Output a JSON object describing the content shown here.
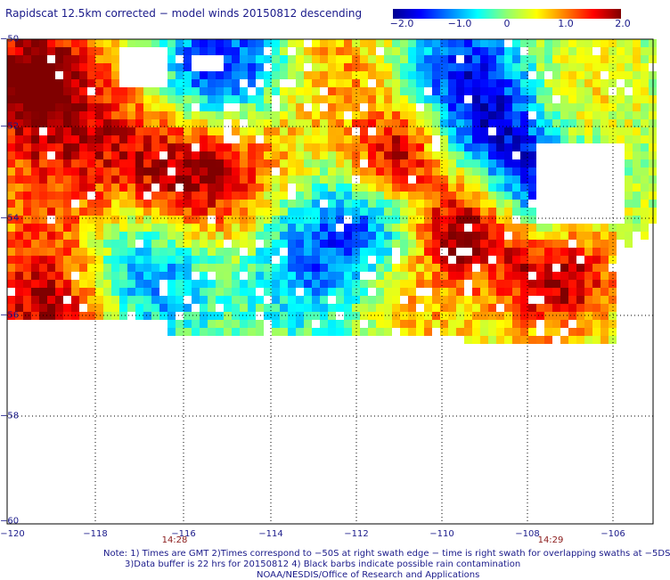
{
  "title": "Rapidscat 12.5km corrected − model winds 20150812 descending",
  "colorbar": {
    "ticks": [
      "−2.0",
      "−1.0",
      "0",
      "1.0",
      "2.0"
    ],
    "range": [
      -2.0,
      2.0
    ]
  },
  "map": {
    "lon_range": [
      -120,
      -105
    ],
    "lat_range": [
      -60,
      -50
    ],
    "lon_ticks": [
      "−120",
      "−118",
      "−116",
      "−114",
      "−112",
      "−110",
      "−108",
      "−106"
    ],
    "lat_ticks": [
      "−50",
      "−52",
      "−54",
      "−56",
      "−58",
      "−60"
    ],
    "time_labels": [
      "14:28",
      "14:29"
    ]
  },
  "notes": {
    "line1": "Note: 1) Times are GMT 2)Times correspond to −50S at right swath edge − time is right swath for overlapping swaths at −5DS",
    "line2": "3)Data buffer is 22 hrs for 20150812 4) Black barbs indicate possible rain contamination",
    "line3": "NOAA/NESDIS/Office of Research and Applications"
  }
}
